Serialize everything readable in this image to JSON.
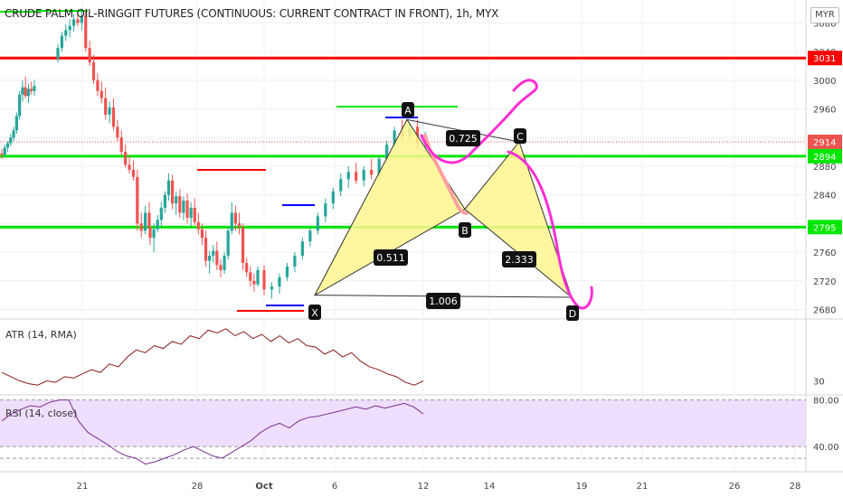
{
  "header": {
    "title": "CRUDE PALM OIL-RINGGIT FUTURES (CONTINUOUS: CURRENT CONTRACT IN FRONT), 1h, MYX",
    "currency": "MYR"
  },
  "indicators": {
    "atr_label": "ATR (14, RMA)",
    "rsi_label": "RSI (14, close)"
  },
  "colors": {
    "up": "#26a69a",
    "down": "#ef5350",
    "wick": "#555555",
    "red_level": "#ff0000",
    "green_level": "#00e600",
    "pattern_fill": "#fff68f",
    "pattern_line": "#333333",
    "magenta": "#ff2ed5",
    "atr_line": "#8b1a1a",
    "rsi_line": "#7b2f8e",
    "rsi_band": "#e8d4ff"
  },
  "chart_data": [
    {
      "type": "candlestick",
      "title": "CRUDE PALM OIL-RINGGIT FUTURES (CONTINUOUS: CURRENT CONTRACT IN FRONT), 1h, MYX",
      "y_ticks": [
        "3080",
        "3040",
        "3000",
        "2960",
        "2920",
        "2880",
        "2840",
        "2800",
        "2760",
        "2720",
        "2680"
      ],
      "x_ticks": [
        "21",
        "28",
        "Oct",
        "6",
        "12",
        "14",
        "19",
        "21",
        "26",
        "28"
      ],
      "ylim": [
        2668,
        3112
      ],
      "price_labels": [
        {
          "value": 3031,
          "text": "3031",
          "color": "#ff0000"
        },
        {
          "value": 2914,
          "text": "2914",
          "color": "#ef5350"
        },
        {
          "value": 2894,
          "text": "2894",
          "color": "#00e600"
        },
        {
          "value": 2795,
          "text": "2795",
          "color": "#00e600"
        }
      ],
      "levels": [
        {
          "value": 3031,
          "kind": "red"
        },
        {
          "value": 2894,
          "kind": "green"
        },
        {
          "value": 2795,
          "kind": "green"
        }
      ],
      "current_price": 2914,
      "candles": [
        [
          2898,
          2904,
          2890,
          2896
        ],
        [
          2896,
          2910,
          2892,
          2906
        ],
        [
          2906,
          2915,
          2900,
          2912
        ],
        [
          2912,
          2925,
          2908,
          2920
        ],
        [
          2920,
          2935,
          2915,
          2930
        ],
        [
          2930,
          2955,
          2925,
          2950
        ],
        [
          2950,
          2985,
          2945,
          2980
        ],
        [
          2980,
          3000,
          2970,
          2990
        ],
        [
          2990,
          3005,
          2975,
          2978
        ],
        [
          2978,
          2995,
          2968,
          2988
        ],
        [
          2988,
          2998,
          2980,
          2985
        ],
        [
          2985,
          3000,
          2978,
          2992
        ],
        [
          3030,
          3050,
          3025,
          3045
        ],
        [
          3045,
          3068,
          3040,
          3062
        ],
        [
          3062,
          3078,
          3055,
          3070
        ],
        [
          3070,
          3085,
          3060,
          3076
        ],
        [
          3076,
          3092,
          3068,
          3085
        ],
        [
          3085,
          3098,
          3075,
          3080
        ],
        [
          3080,
          3100,
          3070,
          3090
        ],
        [
          3090,
          3098,
          3040,
          3045
        ],
        [
          3045,
          3055,
          3020,
          3025
        ],
        [
          3025,
          3035,
          2995,
          3000
        ],
        [
          3000,
          3010,
          2978,
          2985
        ],
        [
          2985,
          2998,
          2968,
          2975
        ],
        [
          2975,
          2990,
          2945,
          2952
        ],
        [
          2952,
          2970,
          2940,
          2962
        ],
        [
          2962,
          2975,
          2930,
          2935
        ],
        [
          2935,
          2945,
          2915,
          2920
        ],
        [
          2920,
          2930,
          2895,
          2900
        ],
        [
          2900,
          2910,
          2878,
          2882
        ],
        [
          2882,
          2895,
          2870,
          2875
        ],
        [
          2875,
          2888,
          2860,
          2865
        ],
        [
          2865,
          2875,
          2790,
          2800
        ],
        [
          2800,
          2815,
          2780,
          2790
        ],
        [
          2790,
          2825,
          2785,
          2815
        ],
        [
          2815,
          2830,
          2790,
          2795
        ],
        [
          2795,
          2805,
          2770,
          2780
        ],
        [
          2780,
          2800,
          2760,
          2792
        ],
        [
          2792,
          2812,
          2788,
          2805
        ],
        [
          2805,
          2830,
          2795,
          2822
        ],
        [
          2822,
          2845,
          2815,
          2840
        ],
        [
          2840,
          2870,
          2832,
          2860
        ],
        [
          2860,
          2868,
          2820,
          2828
        ],
        [
          2828,
          2845,
          2812,
          2838
        ],
        [
          2838,
          2848,
          2808,
          2815
        ],
        [
          2815,
          2838,
          2805,
          2832
        ],
        [
          2832,
          2842,
          2800,
          2808
        ],
        [
          2808,
          2830,
          2795,
          2822
        ],
        [
          2822,
          2835,
          2798,
          2802
        ],
        [
          2802,
          2815,
          2785,
          2792
        ],
        [
          2792,
          2800,
          2770,
          2780
        ],
        [
          2780,
          2790,
          2740,
          2748
        ],
        [
          2748,
          2762,
          2730,
          2755
        ],
        [
          2755,
          2770,
          2745,
          2762
        ],
        [
          2762,
          2775,
          2735,
          2742
        ],
        [
          2742,
          2750,
          2725,
          2735
        ],
        [
          2735,
          2760,
          2730,
          2755
        ],
        [
          2755,
          2795,
          2750,
          2790
        ],
        [
          2790,
          2830,
          2785,
          2815
        ],
        [
          2815,
          2825,
          2790,
          2800
        ],
        [
          2800,
          2815,
          2785,
          2795
        ],
        [
          2795,
          2800,
          2735,
          2745
        ],
        [
          2745,
          2752,
          2725,
          2732
        ],
        [
          2732,
          2740,
          2712,
          2720
        ],
        [
          2720,
          2730,
          2705,
          2715
        ],
        [
          2715,
          2740,
          2712,
          2735
        ],
        [
          2735,
          2742,
          2700,
          2708
        ],
        [
          2708,
          2718,
          2695,
          2712
        ],
        [
          2712,
          2730,
          2702,
          2725
        ],
        [
          2725,
          2745,
          2720,
          2740
        ],
        [
          2740,
          2760,
          2732,
          2755
        ],
        [
          2755,
          2780,
          2750,
          2775
        ],
        [
          2775,
          2795,
          2768,
          2790
        ],
        [
          2790,
          2815,
          2785,
          2810
        ],
        [
          2810,
          2835,
          2802,
          2828
        ],
        [
          2828,
          2850,
          2820,
          2845
        ],
        [
          2845,
          2870,
          2838,
          2862
        ],
        [
          2862,
          2880,
          2850,
          2872
        ],
        [
          2872,
          2885,
          2855,
          2860
        ],
        [
          2860,
          2880,
          2852,
          2875
        ],
        [
          2875,
          2890,
          2862,
          2868
        ],
        [
          2868,
          2895,
          2860,
          2890
        ],
        [
          2890,
          2915,
          2882,
          2910
        ],
        [
          2910,
          2935,
          2900,
          2930
        ],
        [
          2930,
          2945,
          2915,
          2922
        ],
        [
          2922,
          2940,
          2915,
          2935
        ],
        [
          2935,
          2945,
          2905,
          2912
        ],
        [
          2912,
          2928,
          2900,
          2914
        ]
      ],
      "harmonic": {
        "points": [
          {
            "label": "X",
            "value": 2700
          },
          {
            "label": "A",
            "value": 2945
          },
          {
            "label": "B",
            "value": 2820
          },
          {
            "label": "C",
            "value": 2914
          },
          {
            "label": "D",
            "value": 2697
          }
        ],
        "ratios": [
          "0.511",
          "0.725",
          "2.333",
          "1.006"
        ]
      }
    },
    {
      "type": "line",
      "name": "ATR (14, RMA)",
      "y_ticks": [
        "30"
      ],
      "values": [
        36,
        33,
        30,
        28,
        27,
        30,
        29,
        33,
        32,
        35,
        38,
        36,
        42,
        40,
        47,
        52,
        50,
        55,
        53,
        58,
        56,
        62,
        60,
        66,
        64,
        67,
        62,
        65,
        60,
        63,
        58,
        62,
        57,
        60,
        55,
        54,
        49,
        52,
        47,
        50,
        44,
        40,
        38,
        35,
        33,
        29,
        27,
        30
      ]
    },
    {
      "type": "line",
      "name": "RSI (14, close)",
      "y_ticks": [
        "80.00",
        "40.00"
      ],
      "ylim": [
        20,
        82
      ],
      "band": [
        40,
        80
      ],
      "values": [
        62,
        68,
        72,
        75,
        74,
        78,
        80,
        80,
        62,
        52,
        47,
        42,
        36,
        32,
        30,
        25,
        27,
        30,
        33,
        37,
        40,
        36,
        32,
        30,
        35,
        40,
        45,
        52,
        57,
        60,
        56,
        62,
        65,
        66,
        68,
        70,
        72,
        74,
        72,
        75,
        73,
        75,
        77,
        74,
        68
      ]
    }
  ]
}
